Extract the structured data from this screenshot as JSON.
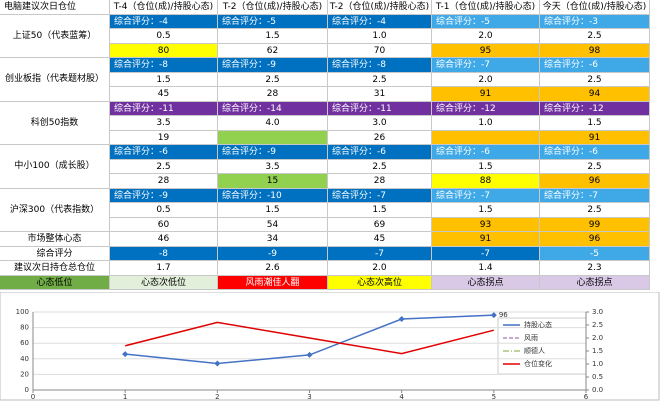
{
  "table": {
    "header": [
      "电脑建议次日仓位",
      "T-4（仓位(成)/持股心态)",
      "T-2（仓位(成)/持股心态)",
      "T-2（仓位(成)/持股心态)",
      "T-1（仓位(成)/持股心态)",
      "今天（仓位(成)/持股心态)"
    ],
    "blocks": [
      {
        "name": "上证50（代表蓝筹）",
        "scores": [
          "综合评分：-4",
          "综合评分：-5",
          "综合评分：-4",
          "综合评分：-5",
          "综合评分：-3"
        ],
        "score_fill": [
          "#0070c0",
          "#0070c0",
          "#0070c0",
          "#3fa9e8",
          "#3fa9e8"
        ],
        "positions": [
          "0.5",
          "1.5",
          "1.0",
          "2.0",
          "2.5"
        ],
        "moods": [
          "80",
          "62",
          "70",
          "95",
          "98"
        ],
        "mood_fill": [
          "#ffff00",
          "#fff",
          "#fff",
          "#ffc000",
          "#ffc000"
        ]
      },
      {
        "name": "创业板指（代表题材股）",
        "scores": [
          "综合评分：-8",
          "综合评分：-9",
          "综合评分：-8",
          "综合评分：-7",
          "综合评分：-6"
        ],
        "score_fill": [
          "#0070c0",
          "#0070c0",
          "#0070c0",
          "#3fa9e8",
          "#3fa9e8"
        ],
        "positions": [
          "1.5",
          "2.5",
          "2.5",
          "2.0",
          "2.5"
        ],
        "moods": [
          "45",
          "28",
          "31",
          "91",
          "94"
        ],
        "mood_fill": [
          "#fff",
          "#fff",
          "#fff",
          "#ffc000",
          "#ffc000"
        ]
      },
      {
        "name": "科创50指数",
        "scores": [
          "综合评分：-11",
          "综合评分：-14",
          "综合评分：-11",
          "综合评分：-12",
          "综合评分：-12"
        ],
        "score_fill": [
          "#7030a0",
          "#7030a0",
          "#7030a0",
          "#7030a0",
          "#7030a0"
        ],
        "positions": [
          "3.5",
          "4.0",
          "3.0",
          "1.0",
          "1.5"
        ],
        "moods": [
          "19",
          null,
          "26",
          null,
          "91"
        ],
        "mood_fill": [
          "#fff",
          "#92d050",
          "#fff",
          "#ffc000",
          "#ffc000"
        ]
      },
      {
        "name": "中小100（成长股）",
        "scores": [
          "综合评分：-6",
          "综合评分：-9",
          "综合评分：-6",
          "综合评分：-6",
          "综合评分：-6"
        ],
        "score_fill": [
          "#0070c0",
          "#0070c0",
          "#0070c0",
          "#3fa9e8",
          "#3fa9e8"
        ],
        "positions": [
          "2.5",
          "3.5",
          "2.5",
          "1.5",
          "2.5"
        ],
        "moods": [
          "28",
          "15",
          "28",
          "88",
          "96"
        ],
        "mood_fill": [
          "#fff",
          "#92d050",
          "#fff",
          "#ffff00",
          "#ffc000"
        ]
      },
      {
        "name": "沪深300（代表指数）",
        "scores": [
          "综合评分：-9",
          "综合评分：-10",
          "综合评分：-7",
          "综合评分：-7",
          "综合评分：-7"
        ],
        "score_fill": [
          "#0070c0",
          "#0070c0",
          "#0070c0",
          "#3fa9e8",
          "#3fa9e8"
        ],
        "positions": [
          "0.5",
          "1.5",
          "1.5",
          "1.5",
          "2.5"
        ],
        "moods": [
          "60",
          "54",
          "69",
          "93",
          "99"
        ],
        "mood_fill": [
          "#fff",
          "#fff",
          "#fff",
          "#ffc000",
          "#ffc000"
        ]
      }
    ],
    "market": {
      "label": "市场整体心态",
      "values": [
        "46",
        "34",
        "45",
        "91",
        "96"
      ],
      "fill": [
        "#fff",
        "#fff",
        "#fff",
        "#ffc000",
        "#ffc000"
      ]
    },
    "total_score": {
      "label": "综合评分",
      "values": [
        "-8",
        "-9",
        "-7",
        "-7",
        "-5"
      ],
      "fill": [
        "#0070c0",
        "#0070c0",
        "#0070c0",
        "#0070c0",
        "#3fa9e8"
      ]
    },
    "suggest": {
      "label": "建议次日持仓总仓位",
      "values": [
        "1.7",
        "2.6",
        "2.0",
        "1.4",
        "2.3"
      ]
    },
    "footer": {
      "labels": [
        "心态低位",
        "心态次低位",
        "风雨潮佳人翻",
        "心态次高位",
        "心态拐点",
        "心态拐点"
      ],
      "fill": [
        "#70ad47",
        "#e2efda",
        "#ff0000",
        "#ffff00",
        "#d9c8e6",
        "#d9c8e6"
      ]
    }
  },
  "chart_data": {
    "type": "line",
    "x": [
      1,
      2,
      3,
      4,
      5
    ],
    "series": [
      {
        "name": "持股心态",
        "color": "#4472c4",
        "values": [
          46,
          34,
          45,
          91,
          96
        ],
        "value_labels": [
          null,
          null,
          null,
          null,
          "96"
        ],
        "marker": true
      },
      {
        "name": "风雨",
        "color": "#b090c0",
        "values": [
          null,
          null,
          null,
          null,
          null
        ],
        "dash": "4,2",
        "axis": "y2"
      },
      {
        "name": "顺德人",
        "color": "#a9c47f",
        "values": [
          null,
          null,
          null,
          null,
          null
        ],
        "dash": "6,2,1,2",
        "axis": "y2"
      },
      {
        "name": "仓位变化",
        "color": "#e00000",
        "values": [
          1.7,
          2.6,
          2.0,
          1.4,
          2.3
        ],
        "axis": "y2"
      }
    ],
    "xlim": [
      0,
      6
    ],
    "xticks": [
      0,
      1,
      2,
      3,
      4,
      5,
      6
    ],
    "ylim": [
      0,
      100
    ],
    "yticks": [
      0,
      20,
      40,
      60,
      80,
      100
    ],
    "y2lim": [
      0,
      3
    ],
    "y2ticks": [
      {
        "value": 0,
        "label": "0.0"
      },
      0.5,
      {
        "value": 1,
        "label": "1.0"
      },
      1.5,
      {
        "value": 2,
        "label": "2.0"
      },
      2.5,
      {
        "value": 3,
        "label": "3.0"
      }
    ]
  }
}
